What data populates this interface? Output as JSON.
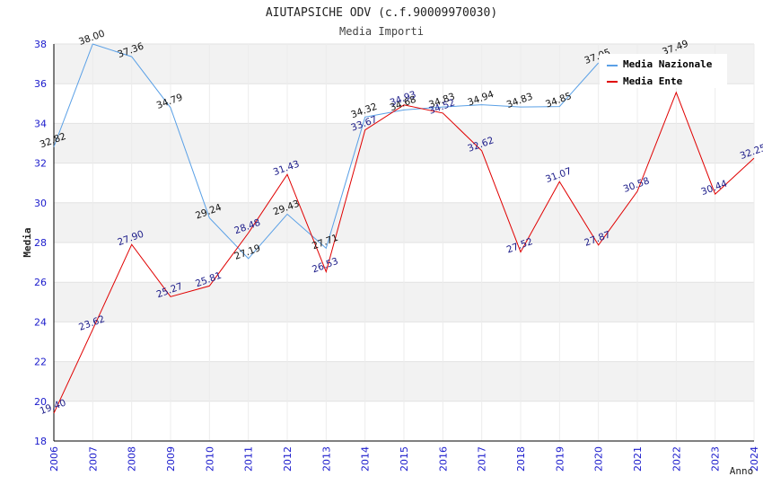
{
  "chart_data": {
    "type": "line",
    "title": "AIUTAPSICHE ODV (c.f.90009970030)",
    "subtitle": "Media Importi",
    "xlabel": "Anno",
    "ylabel": "Media",
    "ylim": [
      18,
      38
    ],
    "yticks": [
      "18",
      "20",
      "22",
      "24",
      "26",
      "28",
      "30",
      "32",
      "34",
      "36",
      "38"
    ],
    "categories": [
      "2006",
      "2007",
      "2008",
      "2009",
      "2010",
      "2011",
      "2012",
      "2013",
      "2014",
      "2015",
      "2016",
      "2017",
      "2018",
      "2019",
      "2020",
      "2021",
      "2022",
      "2023",
      "2024"
    ],
    "legend_position": "top-right",
    "series": [
      {
        "name": "Media Nazionale",
        "color": "#5aa0e6",
        "values": [
          32.82,
          38.0,
          37.36,
          34.79,
          29.24,
          27.19,
          29.43,
          27.71,
          34.32,
          34.68,
          34.83,
          34.94,
          34.83,
          34.85,
          37.05,
          null,
          37.49,
          null,
          null
        ],
        "labels": [
          "32.82",
          "38.00",
          "37.36",
          "34.79",
          "29.24",
          "27.19",
          "29.43",
          "27.71",
          "34.32",
          "34.68",
          "34.83",
          "34.94",
          "34.83",
          "34.85",
          "37.05",
          "",
          "37.49",
          "",
          ""
        ]
      },
      {
        "name": "Media Ente",
        "color": "#e00000",
        "values": [
          19.4,
          23.62,
          27.9,
          25.27,
          25.81,
          28.48,
          31.43,
          26.53,
          33.67,
          34.93,
          34.52,
          32.62,
          27.52,
          31.07,
          27.87,
          30.58,
          35.56,
          30.44,
          32.25
        ],
        "labels": [
          "19.40",
          "23.62",
          "27.90",
          "25.27",
          "25.81",
          "28.48",
          "31.43",
          "26.53",
          "33.67",
          "34.93",
          "34.52",
          "32.62",
          "27.52",
          "31.07",
          "27.87",
          "30.58",
          "",
          "30.44",
          "32.25"
        ]
      }
    ]
  }
}
